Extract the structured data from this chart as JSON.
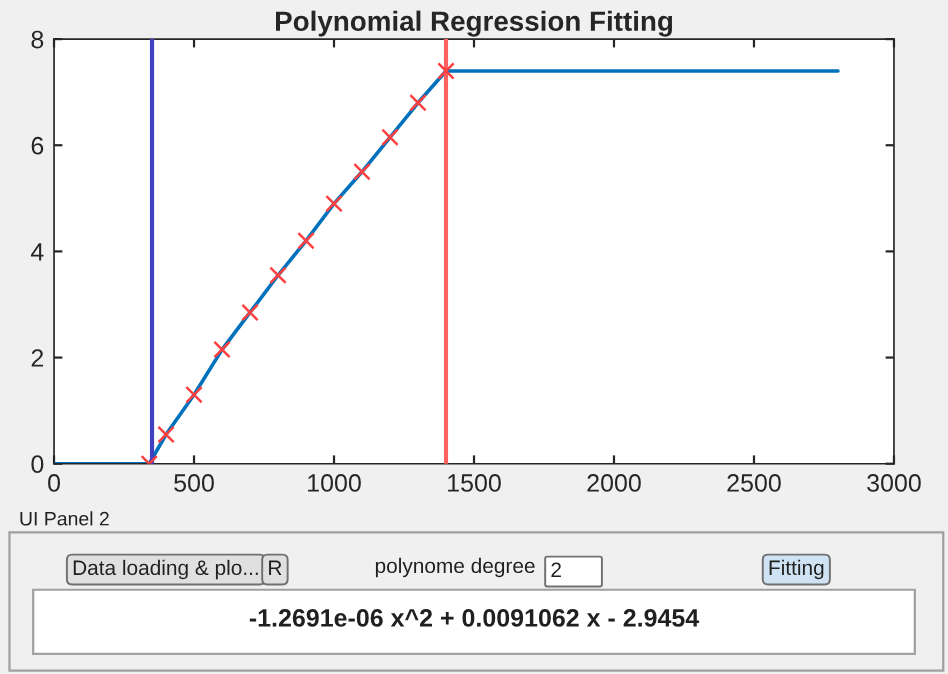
{
  "chart_data": {
    "type": "line",
    "title": "Polynomial Regression Fitting",
    "xlim": [
      0,
      3000
    ],
    "xticks": [
      0,
      500,
      1000,
      1500,
      2000,
      2500,
      3000
    ],
    "ylim": [
      0,
      8
    ],
    "yticks": [
      0,
      2,
      4,
      6,
      8
    ],
    "grid": false,
    "legend": false,
    "line_style": "solid",
    "series": [
      {
        "color": "#0072bd",
        "marker": "none",
        "x": [
          0,
          340,
          400,
          500,
          600,
          700,
          800,
          900,
          1000,
          1100,
          1200,
          1300,
          1400,
          2800
        ],
        "values": [
          0,
          0,
          0.55,
          1.3,
          2.15,
          2.85,
          3.55,
          4.2,
          4.9,
          5.5,
          6.15,
          6.8,
          7.4,
          7.4
        ]
      },
      {
        "type": "scatter",
        "color": "#ff4040",
        "marker": "cross",
        "x": [
          340,
          400,
          500,
          600,
          700,
          800,
          900,
          1000,
          1100,
          1200,
          1300,
          1400
        ],
        "values": [
          0,
          0.55,
          1.3,
          2.15,
          2.85,
          3.55,
          4.2,
          4.9,
          5.5,
          6.15,
          6.8,
          7.4
        ]
      }
    ],
    "ref_lines": [
      {
        "axis": "x",
        "value": 350,
        "color": "#4040c0"
      },
      {
        "axis": "x",
        "value": 1400,
        "color": "#ff6060"
      }
    ],
    "annotations": [
      "UI Panel 2",
      "Data loading & plo...",
      "R",
      "polynome degree",
      "2",
      "Fitting",
      "-1.2691e-06 x^2 + 0.0091062 x - 2.9454"
    ]
  }
}
